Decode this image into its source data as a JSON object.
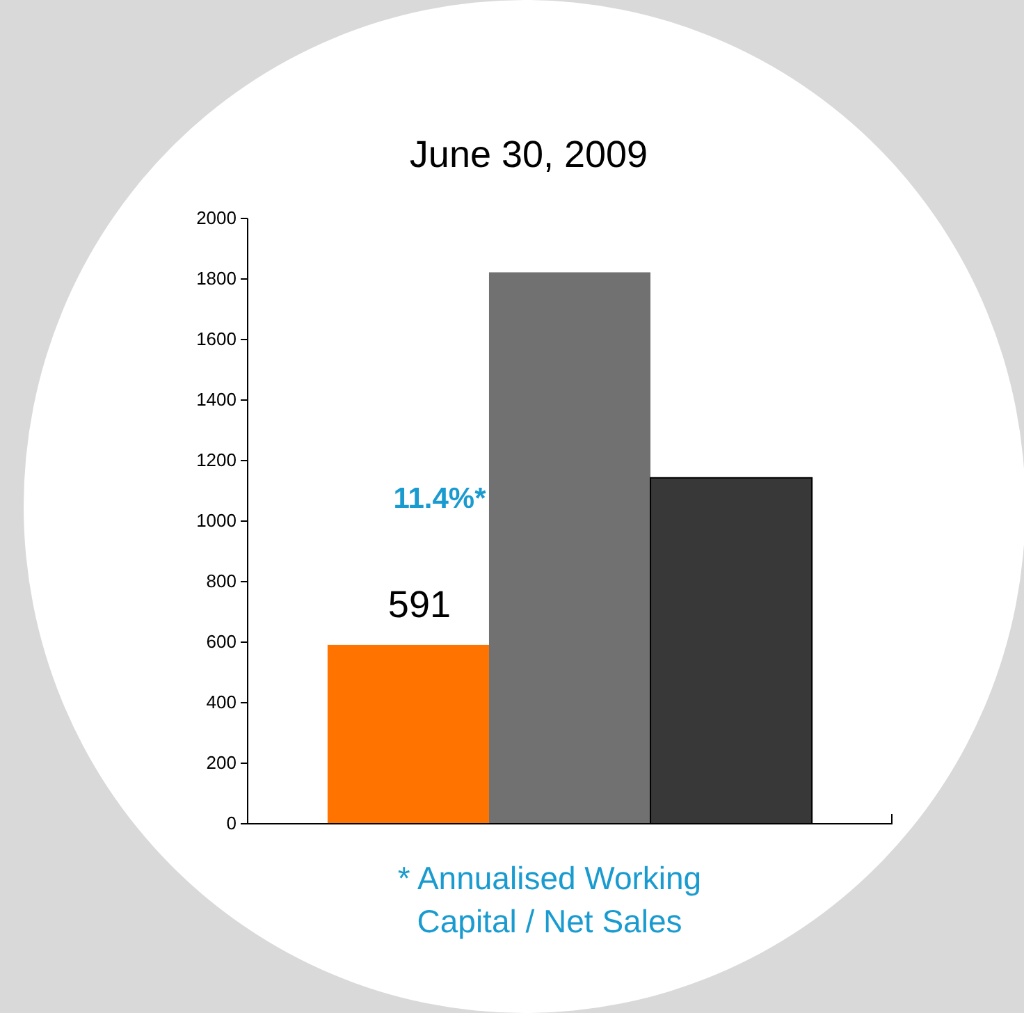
{
  "chart_data": {
    "type": "bar",
    "title": "June 30, 2009",
    "categories": [
      null
    ],
    "series": [
      {
        "color": "#ff7300",
        "values": [
          591
        ],
        "value_labels": [
          "591"
        ]
      },
      {
        "color": "#717171",
        "values": [
          1822
        ]
      },
      {
        "color": "#383838",
        "values": [
          1143
        ]
      }
    ],
    "ylim": [
      0,
      2000
    ],
    "yticks": [
      0,
      200,
      400,
      600,
      800,
      1000,
      1200,
      1400,
      1600,
      1800,
      2000
    ],
    "grid": false,
    "annotations": [
      "11.4%*",
      "* Annualised Working Capital / Net Sales"
    ]
  }
}
